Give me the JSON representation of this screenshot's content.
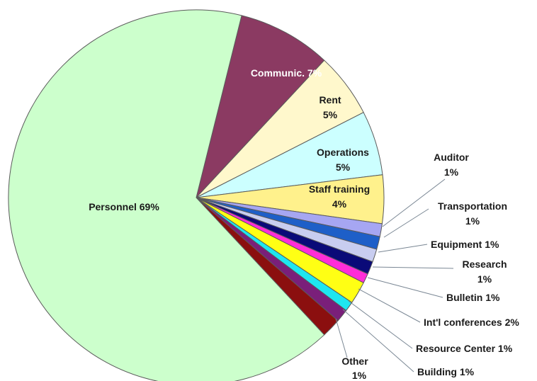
{
  "chart_data": {
    "type": "pie",
    "title": "",
    "colors_note": "slice colors listed per slice",
    "slices": [
      {
        "label": "Communic.",
        "pct_text": "7%",
        "value": 7,
        "color": "#8B3A62"
      },
      {
        "label": "Rent",
        "pct_text": "5%",
        "value": 5,
        "color": "#FFF8CC"
      },
      {
        "label": "Operations",
        "pct_text": "5%",
        "value": 5,
        "color": "#CCFFFF"
      },
      {
        "label": "Staff training",
        "pct_text": "4%",
        "value": 4,
        "color": "#FFF18C"
      },
      {
        "label": "Auditor",
        "pct_text": "1%",
        "value": 1,
        "color": "#A6A6F2"
      },
      {
        "label": "Transportation",
        "pct_text": "1%",
        "value": 1,
        "color": "#1E5FC8"
      },
      {
        "label": "Equipment",
        "pct_text": "1%",
        "value": 1,
        "color": "#C8CDF0"
      },
      {
        "label": "Research",
        "pct_text": "1%",
        "value": 1,
        "color": "#0A0A78"
      },
      {
        "label": "Bulletin",
        "pct_text": "1%",
        "value": 1,
        "color": "#FF2DD8"
      },
      {
        "label": "Int'l conferences",
        "pct_text": "2%",
        "value": 2,
        "color": "#FFFF14"
      },
      {
        "label": "Resource Center",
        "pct_text": "1%",
        "value": 1,
        "color": "#1EE6F0"
      },
      {
        "label": "Building",
        "pct_text": "1%",
        "value": 1,
        "color": "#7A1F7A"
      },
      {
        "label": "Other",
        "pct_text": "1%",
        "value": 1,
        "color": "#8B0F0F"
      },
      {
        "label": "Personnel",
        "pct_text": "69%",
        "value": 69,
        "color": "#CCFFCC"
      }
    ]
  }
}
